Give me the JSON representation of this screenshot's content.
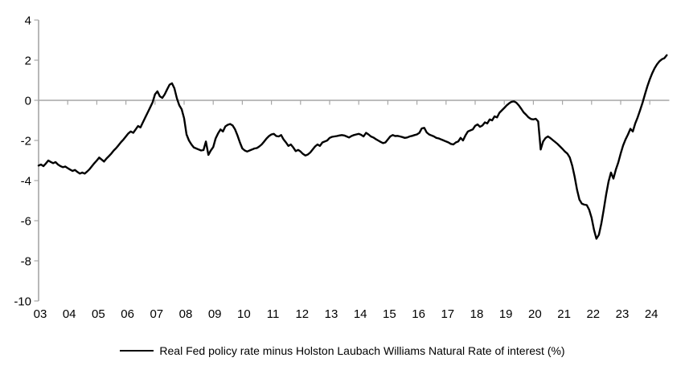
{
  "chart_data": {
    "type": "line",
    "title": "",
    "grid": "zero-line-only",
    "legend_position": "bottom",
    "y_axis": {
      "ticks": [
        4,
        2,
        0,
        -2,
        -4,
        -6,
        -8,
        -10
      ],
      "min": -10,
      "max": 4
    },
    "x_axis": {
      "tick_labels": [
        "03",
        "04",
        "05",
        "06",
        "07",
        "08",
        "09",
        "10",
        "11",
        "12",
        "13",
        "14",
        "15",
        "16",
        "17",
        "18",
        "19",
        "20",
        "21",
        "22",
        "23",
        "24"
      ],
      "start_year": 2003,
      "end_fraction_year": 2024.6
    },
    "series": [
      {
        "name": "Real Fed policy rate minus Holston Laubach Williams Natural Rate of interest (%)",
        "color": "#000000",
        "start": "2003-01",
        "frequency": "monthly",
        "values": [
          -3.25,
          -3.2,
          -3.28,
          -3.15,
          -3.0,
          -3.07,
          -3.13,
          -3.08,
          -3.2,
          -3.28,
          -3.33,
          -3.3,
          -3.38,
          -3.45,
          -3.52,
          -3.47,
          -3.57,
          -3.65,
          -3.6,
          -3.65,
          -3.55,
          -3.43,
          -3.28,
          -3.13,
          -3.0,
          -2.85,
          -2.95,
          -3.05,
          -2.9,
          -2.78,
          -2.65,
          -2.5,
          -2.38,
          -2.23,
          -2.08,
          -1.95,
          -1.8,
          -1.65,
          -1.55,
          -1.62,
          -1.45,
          -1.28,
          -1.35,
          -1.1,
          -0.85,
          -0.6,
          -0.35,
          -0.1,
          0.3,
          0.45,
          0.2,
          0.12,
          0.3,
          0.55,
          0.78,
          0.85,
          0.6,
          0.1,
          -0.25,
          -0.45,
          -0.9,
          -1.7,
          -2.0,
          -2.2,
          -2.35,
          -2.4,
          -2.45,
          -2.5,
          -2.48,
          -2.05,
          -2.72,
          -2.5,
          -2.33,
          -1.9,
          -1.65,
          -1.45,
          -1.55,
          -1.3,
          -1.22,
          -1.18,
          -1.25,
          -1.45,
          -1.75,
          -2.1,
          -2.4,
          -2.5,
          -2.55,
          -2.5,
          -2.45,
          -2.4,
          -2.38,
          -2.3,
          -2.2,
          -2.05,
          -1.9,
          -1.78,
          -1.7,
          -1.67,
          -1.78,
          -1.8,
          -1.73,
          -1.95,
          -2.1,
          -2.27,
          -2.2,
          -2.35,
          -2.53,
          -2.47,
          -2.55,
          -2.67,
          -2.75,
          -2.7,
          -2.6,
          -2.45,
          -2.3,
          -2.2,
          -2.27,
          -2.1,
          -2.05,
          -2.0,
          -1.87,
          -1.82,
          -1.8,
          -1.78,
          -1.75,
          -1.73,
          -1.75,
          -1.8,
          -1.85,
          -1.78,
          -1.73,
          -1.7,
          -1.67,
          -1.72,
          -1.8,
          -1.62,
          -1.7,
          -1.8,
          -1.85,
          -1.93,
          -2.0,
          -2.07,
          -2.13,
          -2.1,
          -1.95,
          -1.8,
          -1.73,
          -1.78,
          -1.77,
          -1.8,
          -1.83,
          -1.87,
          -1.85,
          -1.8,
          -1.77,
          -1.73,
          -1.7,
          -1.62,
          -1.4,
          -1.37,
          -1.6,
          -1.7,
          -1.75,
          -1.8,
          -1.87,
          -1.9,
          -1.95,
          -2.0,
          -2.05,
          -2.1,
          -2.17,
          -2.2,
          -2.1,
          -2.05,
          -1.87,
          -2.0,
          -1.75,
          -1.55,
          -1.5,
          -1.45,
          -1.27,
          -1.2,
          -1.32,
          -1.25,
          -1.1,
          -1.15,
          -0.95,
          -1.0,
          -0.8,
          -0.85,
          -0.62,
          -0.5,
          -0.38,
          -0.25,
          -0.15,
          -0.07,
          -0.05,
          -0.12,
          -0.25,
          -0.42,
          -0.6,
          -0.72,
          -0.85,
          -0.93,
          -0.95,
          -0.92,
          -1.05,
          -2.45,
          -2.05,
          -1.88,
          -1.8,
          -1.88,
          -1.98,
          -2.08,
          -2.18,
          -2.3,
          -2.42,
          -2.55,
          -2.65,
          -2.85,
          -3.25,
          -3.8,
          -4.45,
          -4.95,
          -5.15,
          -5.2,
          -5.22,
          -5.45,
          -5.85,
          -6.45,
          -6.9,
          -6.7,
          -6.15,
          -5.45,
          -4.7,
          -4.05,
          -3.6,
          -3.9,
          -3.45,
          -3.1,
          -2.65,
          -2.25,
          -1.95,
          -1.7,
          -1.42,
          -1.55,
          -1.15,
          -0.85,
          -0.5,
          -0.12,
          0.3,
          0.7,
          1.05,
          1.35,
          1.6,
          1.8,
          1.95,
          2.05,
          2.1,
          2.25
        ]
      }
    ],
    "colors": {
      "axis": "#a6a6a6",
      "line": "#000000",
      "text": "#000000",
      "background": "#ffffff"
    }
  }
}
